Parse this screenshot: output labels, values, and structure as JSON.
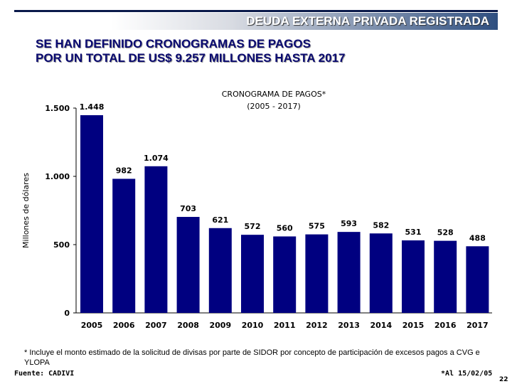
{
  "header": {
    "section": "DEUDA EXTERNA PRIVADA REGISTRADA"
  },
  "slide": {
    "title_line1": "SE HAN DEFINIDO CRONOGRAMAS DE PAGOS",
    "title_line2": "POR UN TOTAL DE US$ 9.257 MILLONES HASTA 2017",
    "footnote": "* Incluye el monto estimado de la solicitud de divisas por parte de SIDOR por concepto de participación de excesos pagos a CVG e YLOPA",
    "source": "Fuente: CADIVI",
    "as_of": "*Al 15/02/05",
    "page_number": "22"
  },
  "chart_data": {
    "type": "bar",
    "title": "CRONOGRAMA DE PAGOS*",
    "subtitle": "(2005 - 2017)",
    "ylabel": "Millones de dólares",
    "xlabel": "",
    "categories": [
      "2005",
      "2006",
      "2007",
      "2008",
      "2009",
      "2010",
      "2011",
      "2012",
      "2013",
      "2014",
      "2015",
      "2016",
      "2017"
    ],
    "values": [
      1448,
      982,
      1074,
      703,
      621,
      572,
      560,
      575,
      593,
      582,
      531,
      528,
      488
    ],
    "data_labels": [
      "1.448",
      "982",
      "1.074",
      "703",
      "621",
      "572",
      "560",
      "575",
      "593",
      "582",
      "531",
      "528",
      "488"
    ],
    "ylim": [
      0,
      1500
    ],
    "yticks": [
      0,
      500,
      1000,
      1500
    ],
    "ytick_labels": [
      "0",
      "500",
      "1.000",
      "1.500"
    ],
    "grid": false,
    "bar_color": "#000080"
  }
}
